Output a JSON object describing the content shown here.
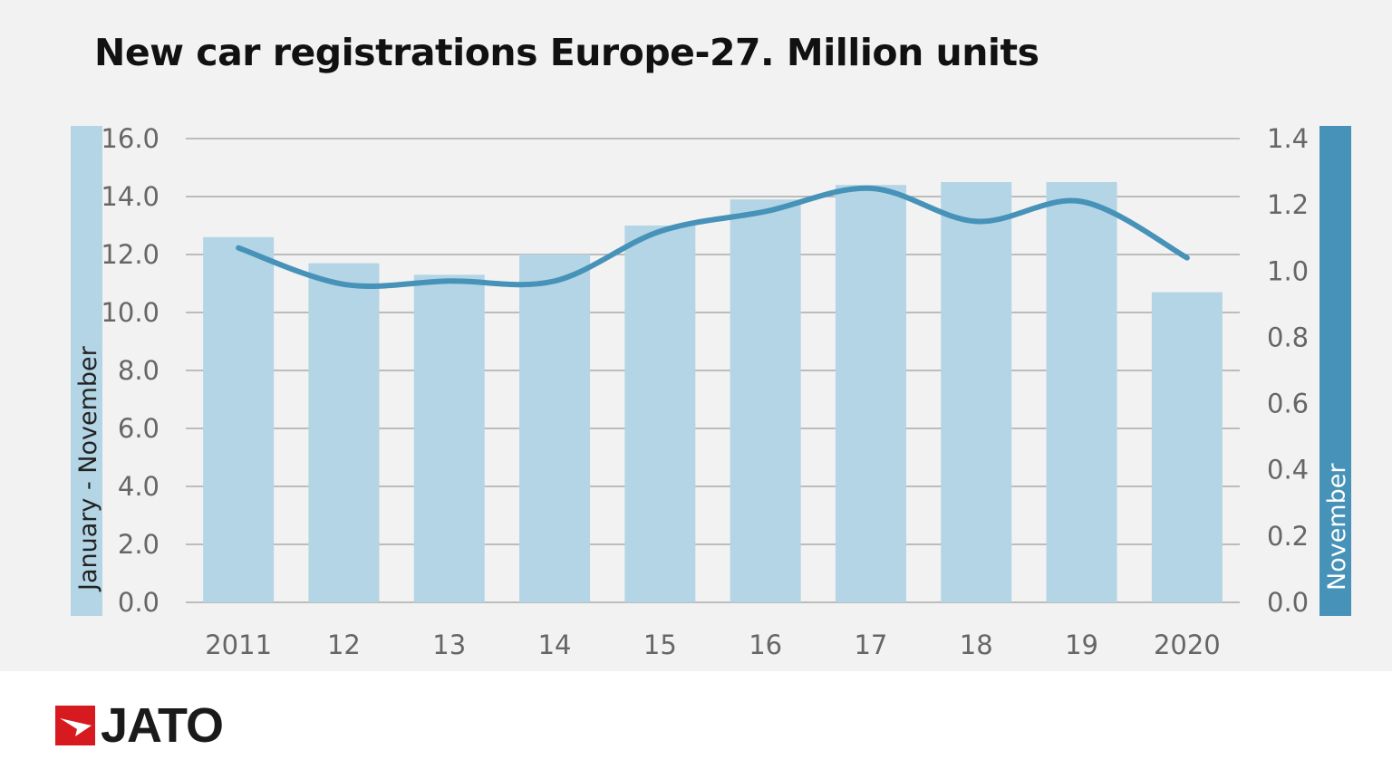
{
  "chart_data": {
    "type": "bar+line",
    "title": "New car registrations Europe-27. Million units",
    "categories": [
      "2011",
      "12",
      "13",
      "14",
      "15",
      "16",
      "17",
      "18",
      "19",
      "2020"
    ],
    "series": [
      {
        "name": "January - November",
        "type": "bar",
        "axis": "left",
        "color": "#b3d5e5",
        "values": [
          12.6,
          11.7,
          11.3,
          12.0,
          13.0,
          13.9,
          14.4,
          14.5,
          14.5,
          10.7
        ]
      },
      {
        "name": "November",
        "type": "line",
        "axis": "right",
        "color": "#4692b8",
        "smooth": true,
        "values": [
          1.07,
          0.96,
          0.97,
          0.97,
          1.12,
          1.18,
          1.25,
          1.15,
          1.21,
          1.04
        ]
      }
    ],
    "y_left": {
      "label": "January - November",
      "ylim": [
        0,
        16
      ],
      "ticks": [
        "0.0",
        "2.0",
        "4.0",
        "6.0",
        "8.0",
        "10.0",
        "12.0",
        "14.0",
        "16.0"
      ]
    },
    "y_right": {
      "label": "November",
      "ylim": [
        0,
        1.4
      ],
      "ticks": [
        "0.0",
        "0.2",
        "0.4",
        "0.6",
        "0.8",
        "1.0",
        "1.2",
        "1.4"
      ]
    },
    "grid": true,
    "legend": "none"
  },
  "brand": {
    "logo_text": "JATO",
    "logo_color": "#d71920"
  }
}
